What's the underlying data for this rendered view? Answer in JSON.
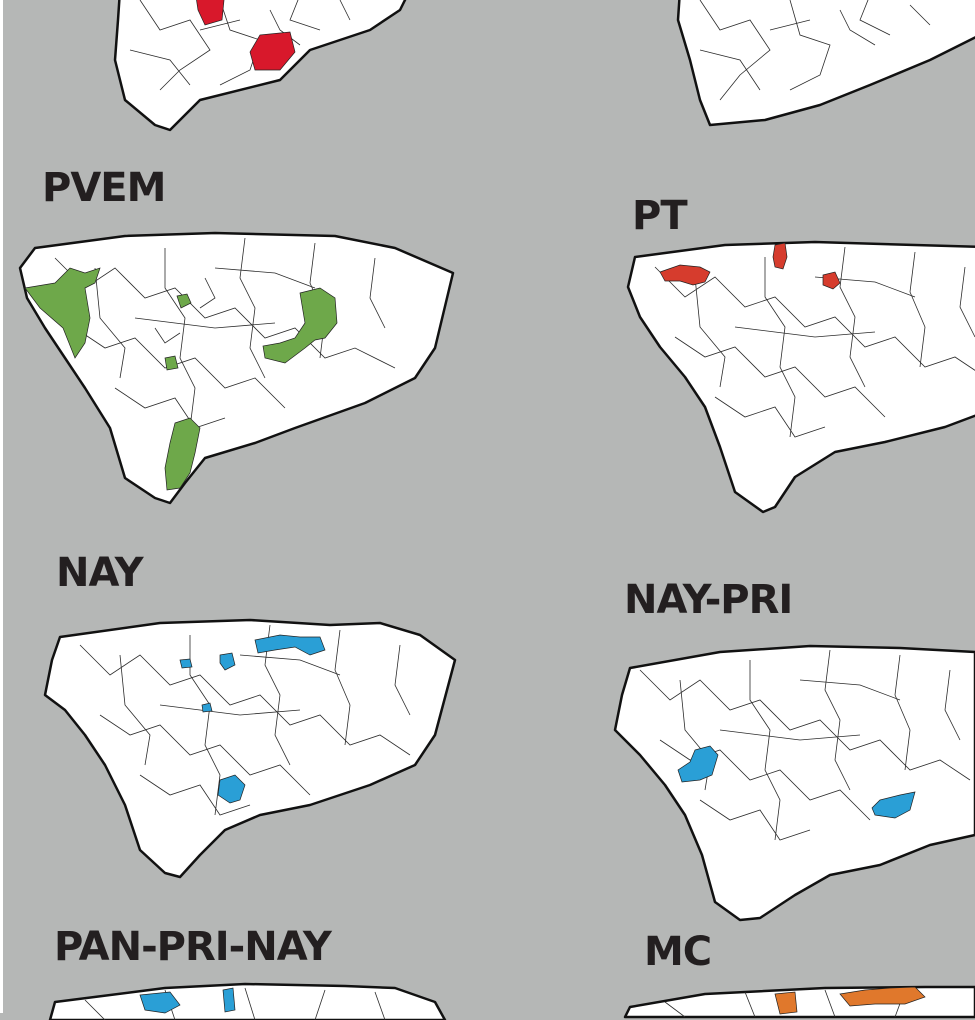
{
  "panels": {
    "pvem": {
      "label": "PVEM",
      "color": "#6ea84a"
    },
    "pt": {
      "label": "PT",
      "color": "#d63c2d"
    },
    "nay": {
      "label": "NAY",
      "color": "#2a9fd6"
    },
    "naypri": {
      "label": "NAY-PRI",
      "color": "#2a9fd6"
    },
    "pppn": {
      "label": "PAN-PRI-NAY",
      "color": "#2a9fd6"
    },
    "mc": {
      "label": "MC",
      "color": "#e0782c"
    },
    "top_left_color": "#d8182b",
    "top_right_color": "#2a9fd6"
  }
}
